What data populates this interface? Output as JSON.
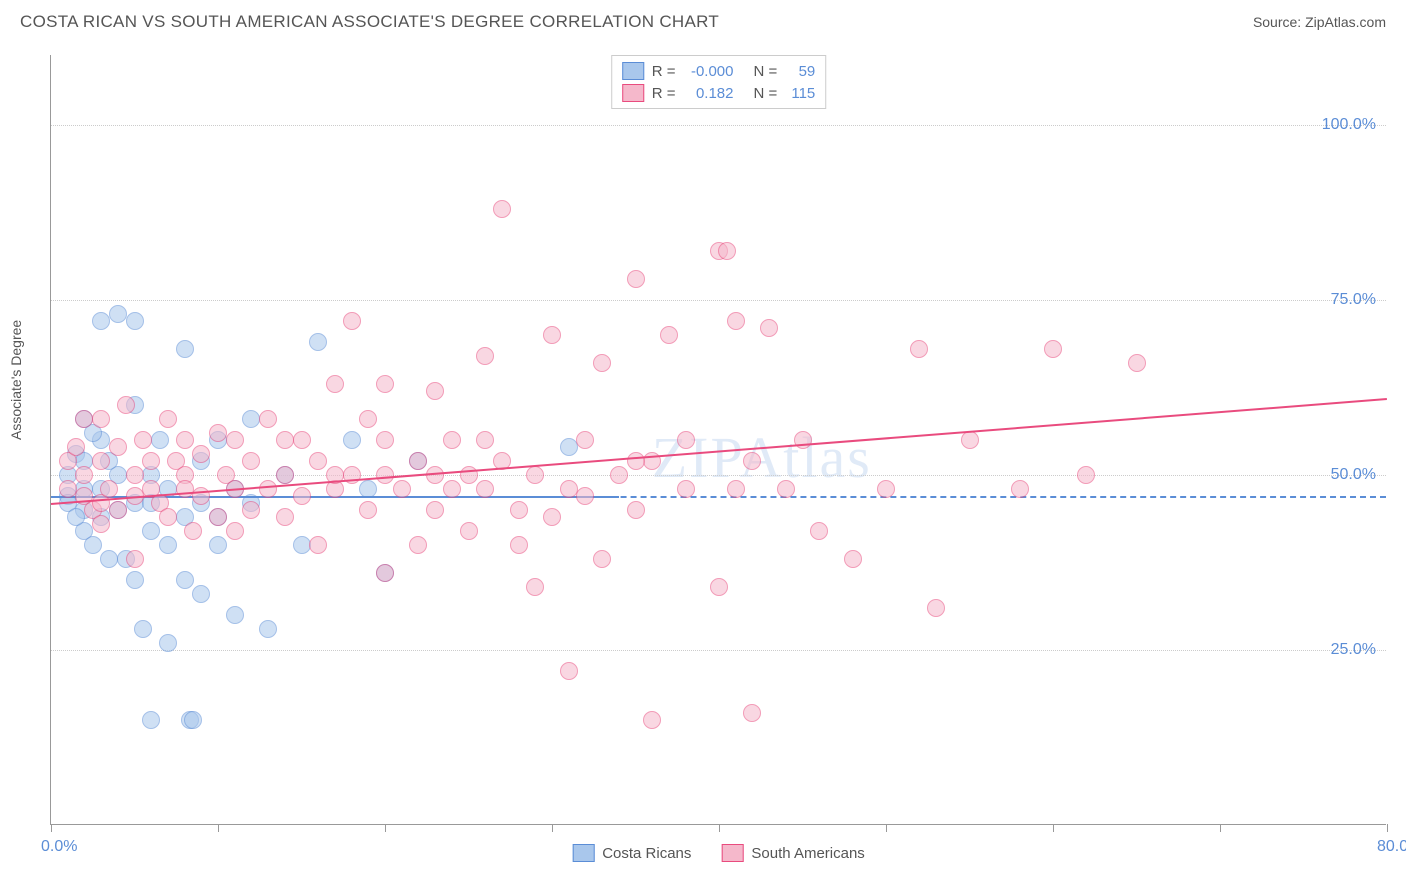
{
  "title": "COSTA RICAN VS SOUTH AMERICAN ASSOCIATE'S DEGREE CORRELATION CHART",
  "source": "Source: ZipAtlas.com",
  "ylabel": "Associate's Degree",
  "watermark": "ZIPAtlas",
  "chart": {
    "type": "scatter",
    "xlim": [
      0,
      80
    ],
    "ylim": [
      0,
      110
    ],
    "x_ticks": [
      0,
      10,
      20,
      30,
      40,
      50,
      60,
      70,
      80
    ],
    "x_labels_shown": [
      {
        "v": 0,
        "t": "0.0%"
      },
      {
        "v": 80,
        "t": "80.0%"
      }
    ],
    "y_gridlines": [
      25,
      50,
      75,
      100
    ],
    "y_labels": [
      "25.0%",
      "50.0%",
      "75.0%",
      "100.0%"
    ],
    "dashed_ref_y": 47,
    "background_color": "#ffffff",
    "grid_color": "#cccccc",
    "dashed_color": "#5b8dd6",
    "axis_color": "#999999",
    "point_radius": 9,
    "point_opacity": 0.55
  },
  "series": [
    {
      "name": "Costa Ricans",
      "fill": "#a9c7ec",
      "stroke": "#5b8dd6",
      "r_label": "R =",
      "r_value": "-0.000",
      "n_label": "N =",
      "n_value": "59",
      "trend": {
        "x1": 0,
        "y1": 47,
        "x2": 34,
        "y2": 47,
        "color": "#5b8dd6"
      },
      "points": [
        [
          1,
          47
        ],
        [
          1,
          50
        ],
        [
          1.5,
          53
        ],
        [
          2,
          45
        ],
        [
          2,
          42
        ],
        [
          2,
          58
        ],
        [
          2.5,
          40
        ],
        [
          3,
          72
        ],
        [
          3,
          48
        ],
        [
          3,
          55
        ],
        [
          3.5,
          38
        ],
        [
          4,
          45
        ],
        [
          4,
          73
        ],
        [
          5,
          72
        ],
        [
          5,
          35
        ],
        [
          5,
          60
        ],
        [
          5.5,
          28
        ],
        [
          6,
          50
        ],
        [
          6,
          42
        ],
        [
          6,
          15
        ],
        [
          6.5,
          55
        ],
        [
          7,
          26
        ],
        [
          7,
          48
        ],
        [
          8,
          68
        ],
        [
          8,
          44
        ],
        [
          8,
          35
        ],
        [
          8.3,
          15
        ],
        [
          8.5,
          15
        ],
        [
          9,
          52
        ],
        [
          9,
          33
        ],
        [
          10,
          40
        ],
        [
          10,
          55
        ],
        [
          11,
          30
        ],
        [
          11,
          48
        ],
        [
          12,
          58
        ],
        [
          13,
          28
        ],
        [
          14,
          50
        ],
        [
          15,
          40
        ],
        [
          16,
          69
        ],
        [
          18,
          55
        ],
        [
          19,
          48
        ],
        [
          20,
          36
        ],
        [
          22,
          52
        ],
        [
          1,
          46
        ],
        [
          2,
          52
        ],
        [
          2.5,
          56
        ],
        [
          3,
          44
        ],
        [
          4,
          50
        ],
        [
          5,
          46
        ],
        [
          1.5,
          44
        ],
        [
          2,
          48
        ],
        [
          3.5,
          52
        ],
        [
          4.5,
          38
        ],
        [
          6,
          46
        ],
        [
          7,
          40
        ],
        [
          9,
          46
        ],
        [
          10,
          44
        ],
        [
          12,
          46
        ],
        [
          31,
          54
        ]
      ]
    },
    {
      "name": "South Americans",
      "fill": "#f5b8cb",
      "stroke": "#e94b7e",
      "r_label": "R =",
      "r_value": "0.182",
      "n_label": "N =",
      "n_value": "115",
      "trend": {
        "x1": 0,
        "y1": 46,
        "x2": 80,
        "y2": 61,
        "color": "#e94b7e"
      },
      "points": [
        [
          1,
          48
        ],
        [
          1,
          52
        ],
        [
          1.5,
          54
        ],
        [
          2,
          47
        ],
        [
          2,
          50
        ],
        [
          2,
          58
        ],
        [
          2.5,
          45
        ],
        [
          3,
          52
        ],
        [
          3,
          46
        ],
        [
          3,
          58
        ],
        [
          3.5,
          48
        ],
        [
          4,
          54
        ],
        [
          4,
          45
        ],
        [
          4.5,
          60
        ],
        [
          5,
          50
        ],
        [
          5,
          47
        ],
        [
          5.5,
          55
        ],
        [
          6,
          52
        ],
        [
          6,
          48
        ],
        [
          6.5,
          46
        ],
        [
          7,
          58
        ],
        [
          7,
          44
        ],
        [
          7.5,
          52
        ],
        [
          8,
          50
        ],
        [
          8,
          55
        ],
        [
          8.5,
          42
        ],
        [
          9,
          47
        ],
        [
          9,
          53
        ],
        [
          10,
          56
        ],
        [
          10,
          44
        ],
        [
          10.5,
          50
        ],
        [
          11,
          48
        ],
        [
          11,
          55
        ],
        [
          12,
          45
        ],
        [
          12,
          52
        ],
        [
          13,
          48
        ],
        [
          13,
          58
        ],
        [
          14,
          50
        ],
        [
          14,
          44
        ],
        [
          15,
          55
        ],
        [
          15,
          47
        ],
        [
          16,
          52
        ],
        [
          16,
          40
        ],
        [
          17,
          63
        ],
        [
          17,
          48
        ],
        [
          18,
          72
        ],
        [
          18,
          50
        ],
        [
          19,
          45
        ],
        [
          19,
          58
        ],
        [
          20,
          50
        ],
        [
          20,
          55
        ],
        [
          20,
          36
        ],
        [
          21,
          48
        ],
        [
          22,
          52
        ],
        [
          22,
          40
        ],
        [
          23,
          62
        ],
        [
          23,
          45
        ],
        [
          24,
          48
        ],
        [
          24,
          55
        ],
        [
          25,
          50
        ],
        [
          25,
          42
        ],
        [
          26,
          67
        ],
        [
          26,
          48
        ],
        [
          27,
          88
        ],
        [
          27,
          52
        ],
        [
          28,
          45
        ],
        [
          28,
          40
        ],
        [
          29,
          50
        ],
        [
          30,
          44
        ],
        [
          30,
          70
        ],
        [
          31,
          22
        ],
        [
          31,
          48
        ],
        [
          32,
          55
        ],
        [
          33,
          66
        ],
        [
          33,
          38
        ],
        [
          34,
          50
        ],
        [
          35,
          78
        ],
        [
          35,
          45
        ],
        [
          36,
          15
        ],
        [
          36,
          52
        ],
        [
          37,
          70
        ],
        [
          38,
          48
        ],
        [
          40,
          82
        ],
        [
          40,
          34
        ],
        [
          40.5,
          82
        ],
        [
          41,
          72
        ],
        [
          42,
          16
        ],
        [
          42,
          52
        ],
        [
          43,
          71
        ],
        [
          44,
          48
        ],
        [
          45,
          55
        ],
        [
          46,
          42
        ],
        [
          48,
          38
        ],
        [
          50,
          48
        ],
        [
          52,
          68
        ],
        [
          53,
          31
        ],
        [
          55,
          55
        ],
        [
          58,
          48
        ],
        [
          60,
          68
        ],
        [
          62,
          50
        ],
        [
          65,
          66
        ],
        [
          3,
          43
        ],
        [
          5,
          38
        ],
        [
          8,
          48
        ],
        [
          11,
          42
        ],
        [
          14,
          55
        ],
        [
          17,
          50
        ],
        [
          20,
          63
        ],
        [
          23,
          50
        ],
        [
          26,
          55
        ],
        [
          29,
          34
        ],
        [
          32,
          47
        ],
        [
          35,
          52
        ],
        [
          38,
          55
        ],
        [
          41,
          48
        ]
      ]
    }
  ],
  "legend": {
    "series1": "Costa Ricans",
    "series2": "South Americans"
  }
}
